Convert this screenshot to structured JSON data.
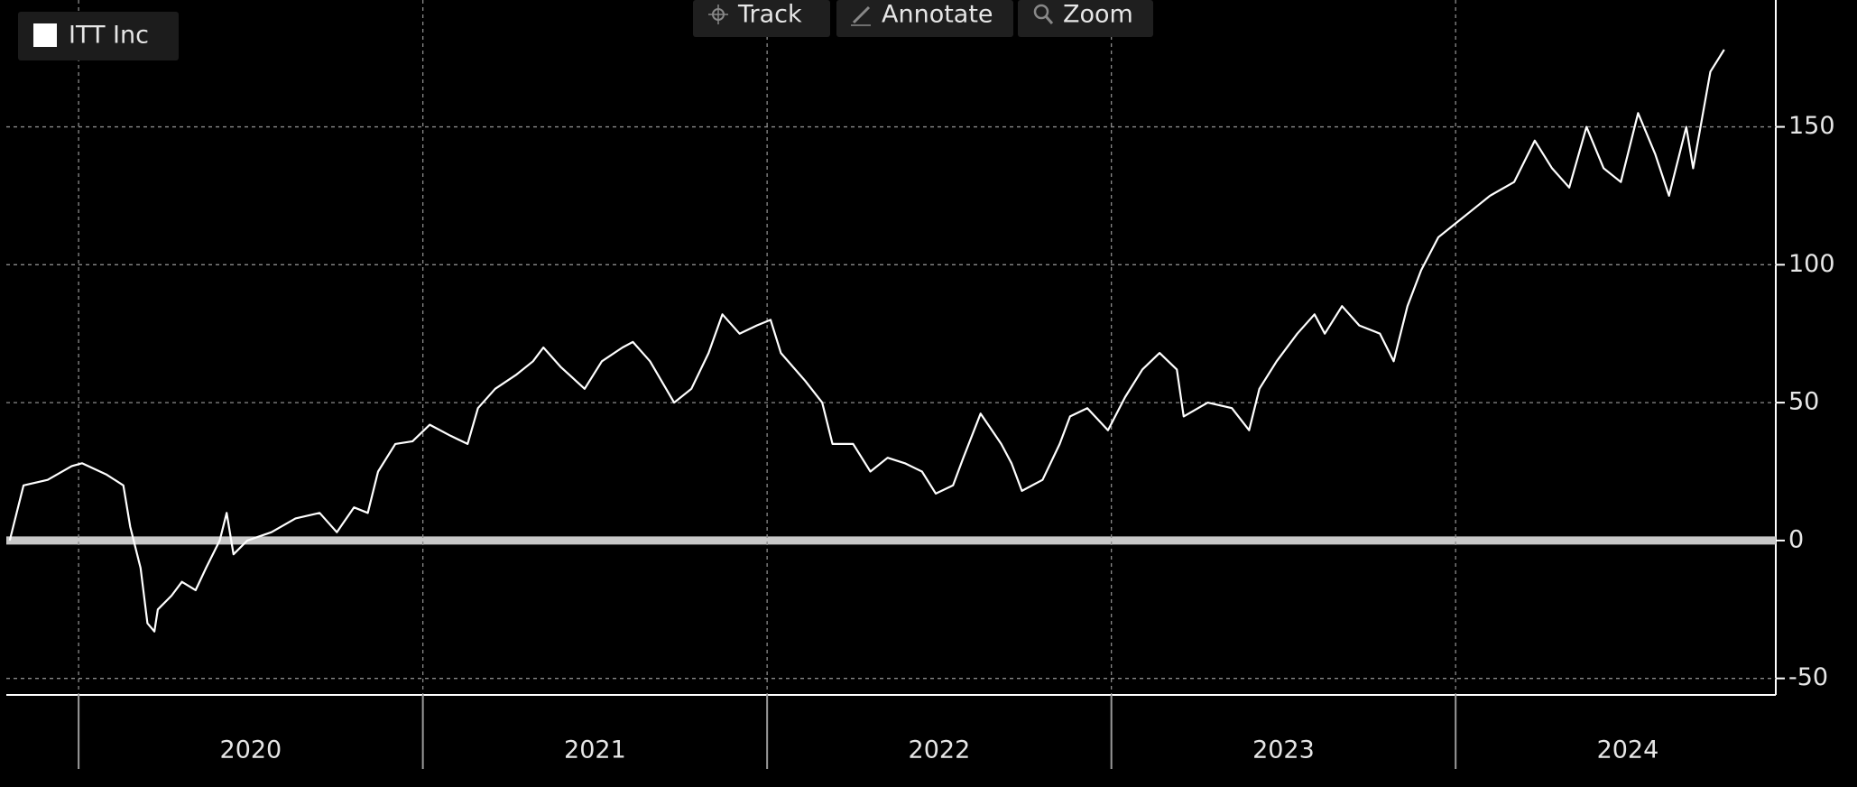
{
  "toolbar": [
    "Track",
    "Annotate",
    "Zoom"
  ],
  "chart_data": {
    "type": "line",
    "x": [
      2019.8,
      2019.81,
      2019.84,
      2019.91,
      2019.98,
      2020.01,
      2020.08,
      2020.13,
      2020.15,
      2020.18,
      2020.2,
      2020.22,
      2020.23,
      2020.27,
      2020.3,
      2020.34,
      2020.37,
      2020.41,
      2020.43,
      2020.45,
      2020.49,
      2020.56,
      2020.63,
      2020.7,
      2020.75,
      2020.8,
      2020.84,
      2020.87,
      2020.92,
      2020.97,
      2021.02,
      2021.08,
      2021.13,
      2021.16,
      2021.21,
      2021.27,
      2021.32,
      2021.35,
      2021.4,
      2021.47,
      2021.52,
      2021.58,
      2021.61,
      2021.66,
      2021.73,
      2021.78,
      2021.83,
      2021.87,
      2021.92,
      2021.97,
      2022.01,
      2022.04,
      2022.11,
      2022.16,
      2022.19,
      2022.25,
      2022.3,
      2022.35,
      2022.4,
      2022.45,
      2022.49,
      2022.54,
      2022.57,
      2022.62,
      2022.68,
      2022.71,
      2022.74,
      2022.8,
      2022.85,
      2022.88,
      2022.93,
      2022.99,
      2023.04,
      2023.09,
      2023.14,
      2023.19,
      2023.21,
      2023.28,
      2023.35,
      2023.4,
      2023.43,
      2023.48,
      2023.54,
      2023.59,
      2023.62,
      2023.67,
      2023.72,
      2023.78,
      2023.82,
      2023.86,
      2023.9,
      2023.95,
      2024.0,
      2024.05,
      2024.1,
      2024.17,
      2024.23,
      2024.28,
      2024.33,
      2024.38,
      2024.43,
      2024.48,
      2024.53,
      2024.58,
      2024.62,
      2024.67,
      2024.69,
      2024.74,
      2024.78
    ],
    "series": [
      {
        "name": "ITT Inc",
        "color": "#ffffff",
        "values": [
          0,
          5,
          20,
          22,
          27,
          28,
          24,
          20,
          5,
          -10,
          -30,
          -33,
          -25,
          -20,
          -15,
          -18,
          -10,
          0,
          10,
          -5,
          0,
          3,
          8,
          10,
          3,
          12,
          10,
          25,
          35,
          36,
          42,
          38,
          35,
          48,
          55,
          60,
          65,
          70,
          63,
          55,
          65,
          70,
          72,
          65,
          50,
          55,
          68,
          82,
          75,
          78,
          80,
          68,
          58,
          50,
          35,
          35,
          25,
          30,
          28,
          25,
          17,
          20,
          30,
          46,
          35,
          28,
          18,
          22,
          35,
          45,
          48,
          40,
          52,
          62,
          68,
          62,
          45,
          50,
          48,
          40,
          55,
          65,
          75,
          82,
          75,
          85,
          78,
          75,
          65,
          85,
          98,
          110,
          115,
          120,
          125,
          130,
          145,
          135,
          128,
          150,
          135,
          130,
          155,
          140,
          125,
          150,
          135,
          170,
          178
        ]
      }
    ],
    "xlim": [
      2019.79,
      2024.93
    ],
    "xticks": [
      {
        "value": 2020,
        "label": "2020"
      },
      {
        "value": 2021,
        "label": "2021"
      },
      {
        "value": 2022,
        "label": "2022"
      },
      {
        "value": 2023,
        "label": "2023"
      },
      {
        "value": 2024,
        "label": "2024"
      }
    ],
    "ylim": [
      -56,
      196
    ],
    "yticks": [
      -50,
      0,
      50,
      100,
      150
    ],
    "grid": true,
    "legend": "upper left"
  }
}
